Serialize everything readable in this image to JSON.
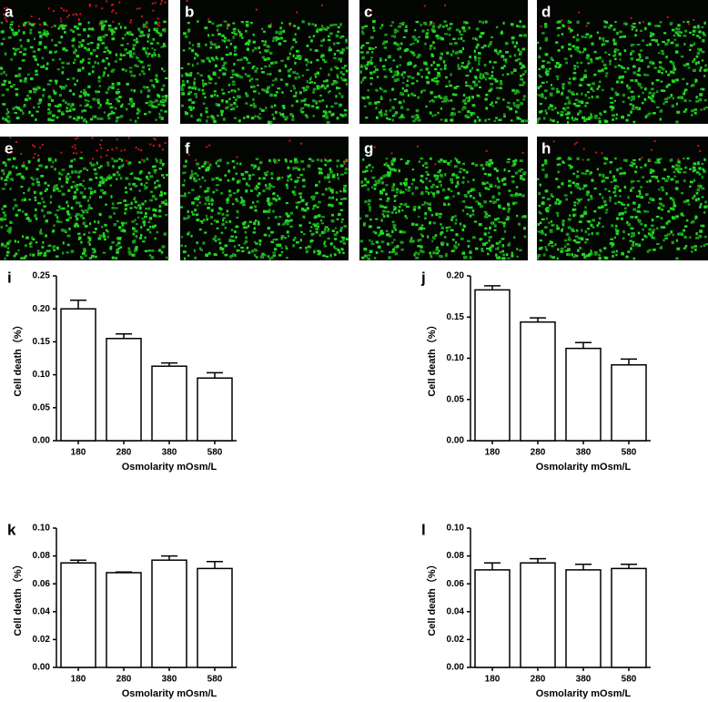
{
  "panel_labels": [
    "a",
    "b",
    "c",
    "d",
    "e",
    "f",
    "g",
    "h"
  ],
  "chart_data": [
    {
      "type": "bar",
      "label": "i",
      "y_label": "Cell death（%）",
      "x_label": "Osmolarity  mOsm/L",
      "categories": [
        "180",
        "280",
        "380",
        "580"
      ],
      "values": [
        0.2,
        0.155,
        0.113,
        0.095
      ],
      "errors": [
        0.013,
        0.007,
        0.005,
        0.008
      ],
      "color": "#ffffff",
      "ylim": [
        0,
        0.25
      ],
      "yticks": [
        {
          "value": 0,
          "label": "0.00"
        },
        0.05,
        {
          "value": 0.1,
          "label": "0.10"
        },
        0.15,
        {
          "value": 0.2,
          "label": "0.20"
        },
        0.25
      ]
    },
    {
      "type": "bar",
      "label": "j",
      "y_label": "Cell death（%）",
      "x_label": "Osmolarity  mOsm/L",
      "categories": [
        "180",
        "280",
        "380",
        "580"
      ],
      "values": [
        0.183,
        0.144,
        0.112,
        0.092
      ],
      "errors": [
        0.005,
        0.005,
        0.007,
        0.007
      ],
      "color": "#ffffff",
      "ylim": [
        0,
        0.2
      ],
      "yticks": [
        {
          "value": 0,
          "label": "0.00"
        },
        0.05,
        {
          "value": 0.1,
          "label": "0.10"
        },
        0.15,
        {
          "value": 0.2,
          "label": "0.20"
        }
      ]
    },
    {
      "type": "bar",
      "label": "k",
      "y_label": "Cell death（%）",
      "x_label": "Osmolarity  mOsm/L",
      "categories": [
        "180",
        "280",
        "380",
        "580"
      ],
      "values": [
        0.075,
        0.068,
        0.077,
        0.071
      ],
      "errors": [
        0.002,
        0.0005,
        0.003,
        0.005
      ],
      "color": "#ffffff",
      "ylim": [
        0,
        0.1
      ],
      "yticks": [
        {
          "value": 0,
          "label": "0.00"
        },
        0.02,
        0.04,
        0.06,
        0.08,
        {
          "value": 0.1,
          "label": "0.10"
        }
      ]
    },
    {
      "type": "bar",
      "label": "l",
      "y_label": "Cell death（%）",
      "x_label": "Osmolarity  mOsm/L",
      "categories": [
        "180",
        "280",
        "380",
        "580"
      ],
      "values": [
        0.07,
        0.075,
        0.07,
        0.071
      ],
      "errors": [
        0.005,
        0.003,
        0.004,
        0.003
      ],
      "color": "#ffffff",
      "ylim": [
        0,
        0.1
      ],
      "yticks": [
        {
          "value": 0,
          "label": "0.00"
        },
        0.02,
        0.04,
        0.06,
        0.08,
        {
          "value": 0.1,
          "label": "0.10"
        }
      ]
    }
  ]
}
